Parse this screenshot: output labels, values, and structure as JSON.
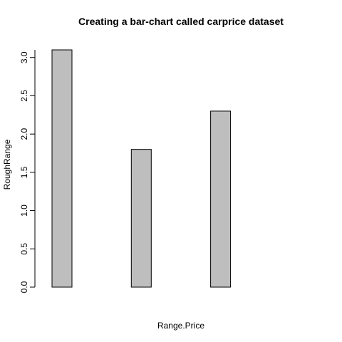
{
  "chart_data": {
    "type": "bar",
    "title": "Creating a bar-chart called carprice dataset",
    "xlabel": "Range.Price",
    "ylabel": "RoughRange",
    "categories": [
      "",
      "",
      "",
      ""
    ],
    "values": [
      3.1,
      1.8,
      2.3,
      0.0
    ],
    "ylim": [
      0,
      3.1
    ],
    "yticks": [
      0.0,
      0.5,
      1.0,
      1.5,
      2.0,
      2.5,
      3.0
    ],
    "ytick_labels": [
      "0.0",
      "0.5",
      "1.0",
      "1.5",
      "2.0",
      "2.5",
      "3.0"
    ],
    "bar_color": "#bebebe",
    "border_color": "#000000",
    "grid": false,
    "legend": "none"
  }
}
